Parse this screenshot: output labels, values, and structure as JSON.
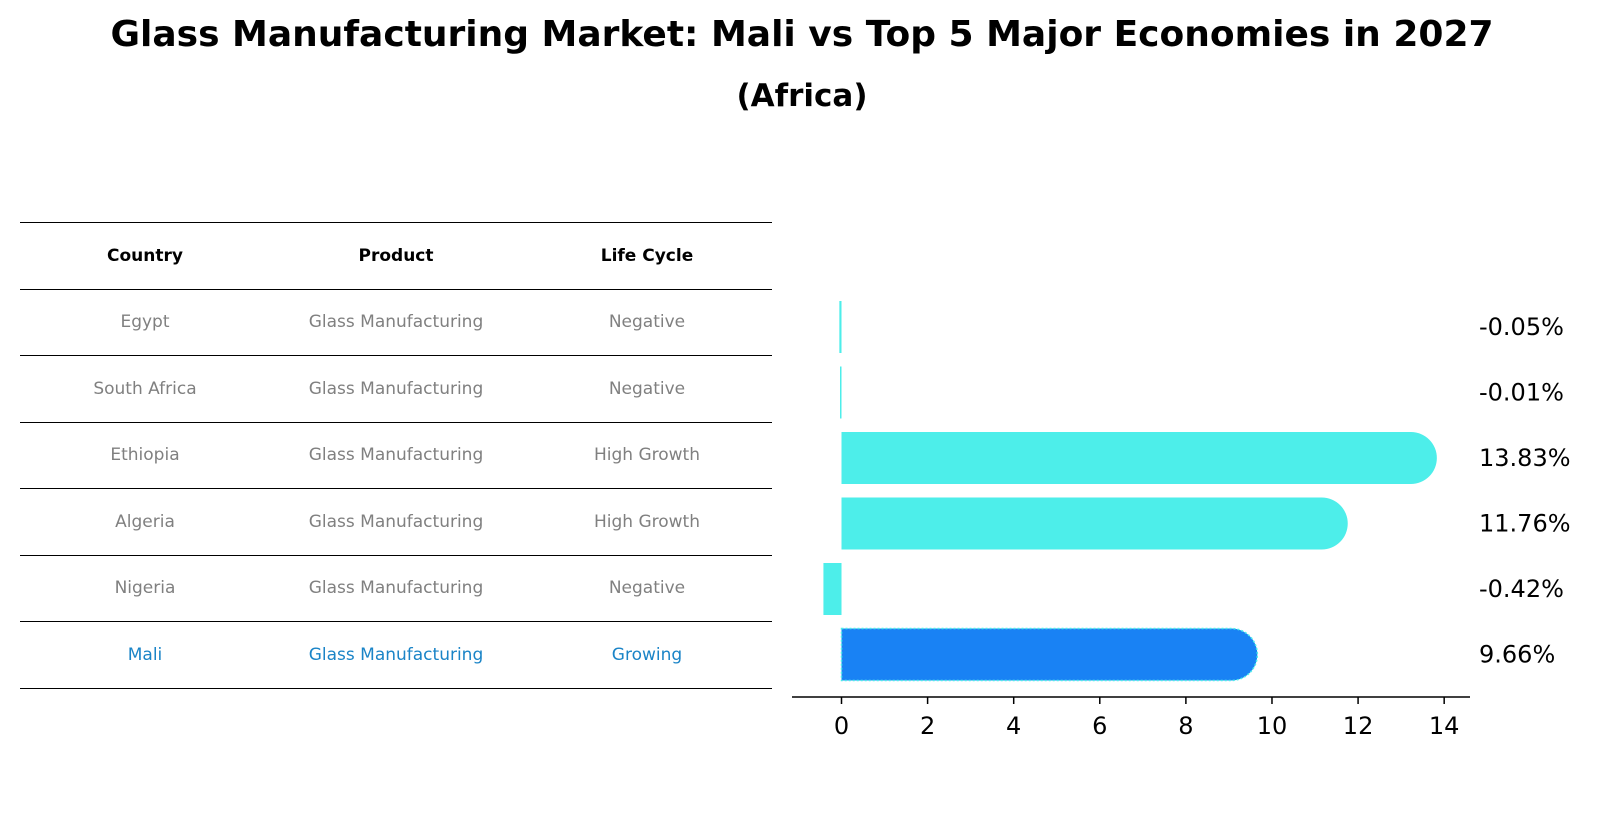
{
  "title": "Glass Manufacturing Market: Mali vs Top 5 Major Economies in 2027",
  "subtitle": "(Africa)",
  "table": {
    "headers": [
      "Country",
      "Product",
      "Life Cycle"
    ],
    "rows": [
      {
        "country": "Egypt",
        "product": "Glass Manufacturing",
        "life_cycle": "Negative"
      },
      {
        "country": "South Africa",
        "product": "Glass Manufacturing",
        "life_cycle": "Negative"
      },
      {
        "country": "Ethiopia",
        "product": "Glass Manufacturing",
        "life_cycle": "High Growth"
      },
      {
        "country": "Algeria",
        "product": "Glass Manufacturing",
        "life_cycle": "High Growth"
      },
      {
        "country": "Nigeria",
        "product": "Glass Manufacturing",
        "life_cycle": "Negative"
      },
      {
        "country": "Mali",
        "product": "Glass Manufacturing",
        "life_cycle": "Growing"
      }
    ]
  },
  "colors": {
    "bar": "#4deeea",
    "highlight_bar": "#1982f4",
    "highlight_text": "#1a84c7",
    "muted_text": "#808080"
  },
  "chart_data": {
    "type": "bar",
    "orientation": "horizontal",
    "categories": [
      "Egypt",
      "South Africa",
      "Ethiopia",
      "Algeria",
      "Nigeria",
      "Mali"
    ],
    "values": [
      -0.05,
      -0.01,
      13.83,
      11.76,
      -0.42,
      9.66
    ],
    "labels": [
      "-0.05%",
      "-0.01%",
      "13.83%",
      "11.76%",
      "-0.42%",
      "9.66%"
    ],
    "highlight": "Mali",
    "xlim": [
      -1.15,
      14.6
    ],
    "xticks": [
      0,
      2,
      4,
      6,
      8,
      10,
      12,
      14
    ],
    "xlabel": "",
    "ylabel": "",
    "grid": false
  }
}
